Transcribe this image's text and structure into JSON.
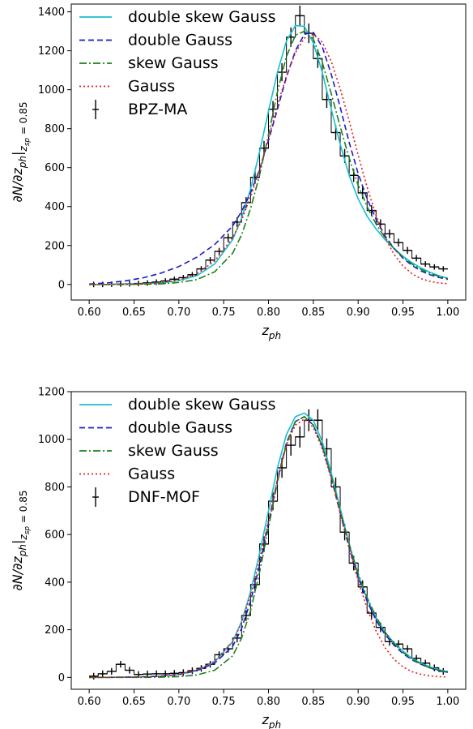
{
  "chart_data": [
    {
      "type": "line",
      "xlabel_main": "z",
      "xlabel_sub": "ph",
      "ylabel": "∂N/∂z_ph|_zsp=0.85",
      "ylabel_parts": {
        "main": "∂N/∂z",
        "sub1": "ph",
        "bar": "|",
        "sub2": "z",
        "sub3": "sp",
        "eq": " = 0.85"
      },
      "xlim": [
        0.58,
        1.02
      ],
      "ylim": [
        -80,
        1440
      ],
      "xticks": [
        "0.60",
        "0.65",
        "0.70",
        "0.75",
        "0.80",
        "0.85",
        "0.90",
        "0.95",
        "1.00"
      ],
      "yticks": [
        "0",
        "200",
        "400",
        "600",
        "800",
        "1000",
        "1200",
        "1400"
      ],
      "legend_position": "upper-left",
      "x": [
        0.6,
        0.62,
        0.64,
        0.66,
        0.68,
        0.7,
        0.72,
        0.74,
        0.76,
        0.77,
        0.78,
        0.79,
        0.8,
        0.81,
        0.82,
        0.83,
        0.84,
        0.85,
        0.86,
        0.87,
        0.88,
        0.89,
        0.9,
        0.91,
        0.92,
        0.93,
        0.94,
        0.95,
        0.96,
        0.97,
        0.98,
        0.99,
        1.0
      ],
      "series": [
        {
          "name": "double skew Gauss",
          "style": "solid",
          "color": "#17becf",
          "values": [
            0,
            0,
            1,
            3,
            8,
            20,
            45,
            105,
            230,
            340,
            490,
            680,
            890,
            1090,
            1250,
            1330,
            1325,
            1240,
            1090,
            900,
            720,
            560,
            440,
            350,
            285,
            230,
            185,
            145,
            112,
            85,
            63,
            45,
            32
          ]
        },
        {
          "name": "double Gauss",
          "style": "dashed",
          "color": "#1a1acc",
          "values": [
            2,
            8,
            18,
            34,
            58,
            92,
            140,
            205,
            300,
            375,
            470,
            590,
            740,
            900,
            1065,
            1200,
            1285,
            1295,
            1220,
            1080,
            910,
            730,
            570,
            440,
            335,
            250,
            185,
            135,
            98,
            70,
            50,
            36,
            26
          ]
        },
        {
          "name": "skew Gauss",
          "style": "dashdot",
          "color": "#1a801a",
          "values": [
            0,
            0,
            0,
            1,
            3,
            10,
            25,
            65,
            160,
            255,
            390,
            560,
            770,
            990,
            1170,
            1280,
            1300,
            1260,
            1140,
            980,
            810,
            650,
            510,
            400,
            310,
            240,
            185,
            140,
            105,
            78,
            57,
            42,
            30
          ]
        },
        {
          "name": "Gauss",
          "style": "dotted",
          "color": "#e31a1c",
          "values": [
            0,
            0,
            1,
            3,
            9,
            23,
            55,
            120,
            240,
            330,
            450,
            590,
            750,
            920,
            1070,
            1190,
            1265,
            1285,
            1245,
            1145,
            1005,
            840,
            665,
            500,
            355,
            240,
            155,
            95,
            55,
            30,
            16,
            8,
            4
          ]
        }
      ],
      "points": {
        "name": "BPZ-MA",
        "x": [
          0.605,
          0.615,
          0.625,
          0.635,
          0.645,
          0.655,
          0.665,
          0.675,
          0.685,
          0.695,
          0.705,
          0.715,
          0.725,
          0.735,
          0.745,
          0.755,
          0.765,
          0.775,
          0.785,
          0.795,
          0.805,
          0.815,
          0.825,
          0.835,
          0.845,
          0.855,
          0.865,
          0.875,
          0.885,
          0.895,
          0.905,
          0.915,
          0.925,
          0.935,
          0.945,
          0.955,
          0.965,
          0.975,
          0.985,
          0.995
        ],
        "y": [
          0,
          0,
          1,
          2,
          3,
          5,
          8,
          12,
          18,
          27,
          35,
          50,
          80,
          125,
          170,
          240,
          320,
          420,
          550,
          700,
          900,
          1090,
          1270,
          1380,
          1290,
          1160,
          950,
          780,
          660,
          560,
          470,
          380,
          310,
          260,
          215,
          175,
          135,
          105,
          90,
          80
        ]
      }
    },
    {
      "type": "line",
      "xlabel_main": "z",
      "xlabel_sub": "ph",
      "ylabel": "∂N/∂z_ph|_zsp=0.85",
      "ylabel_parts": {
        "main": "∂N/∂z",
        "sub1": "ph",
        "bar": "|",
        "sub2": "z",
        "sub3": "sp",
        "eq": " = 0.85"
      },
      "xlim": [
        0.58,
        1.02
      ],
      "ylim": [
        -50,
        1200
      ],
      "xticks": [
        "0.60",
        "0.65",
        "0.70",
        "0.75",
        "0.80",
        "0.85",
        "0.90",
        "0.95",
        "1.00"
      ],
      "yticks": [
        "0",
        "200",
        "400",
        "600",
        "800",
        "1000",
        "1200"
      ],
      "legend_position": "upper-left",
      "x": [
        0.6,
        0.62,
        0.64,
        0.66,
        0.68,
        0.7,
        0.72,
        0.74,
        0.76,
        0.77,
        0.78,
        0.79,
        0.8,
        0.81,
        0.82,
        0.83,
        0.84,
        0.85,
        0.86,
        0.87,
        0.88,
        0.89,
        0.9,
        0.91,
        0.92,
        0.93,
        0.94,
        0.95,
        0.96,
        0.97,
        0.98,
        0.99,
        1.0
      ],
      "series": [
        {
          "name": "double skew Gauss",
          "style": "solid",
          "color": "#17becf",
          "values": [
            0,
            0,
            1,
            2,
            5,
            12,
            28,
            65,
            150,
            235,
            360,
            520,
            700,
            880,
            1020,
            1095,
            1110,
            1080,
            990,
            860,
            710,
            560,
            430,
            330,
            250,
            190,
            145,
            110,
            80,
            60,
            44,
            32,
            24
          ]
        },
        {
          "name": "double Gauss",
          "style": "dashed",
          "color": "#1a1acc",
          "values": [
            0,
            0,
            1,
            2,
            5,
            12,
            28,
            60,
            130,
            205,
            320,
            470,
            650,
            830,
            985,
            1075,
            1095,
            1060,
            970,
            840,
            690,
            545,
            420,
            320,
            240,
            180,
            135,
            100,
            74,
            55,
            40,
            29,
            21
          ]
        },
        {
          "name": "skew Gauss",
          "style": "dashdot",
          "color": "#1a801a",
          "values": [
            0,
            0,
            0,
            0,
            1,
            3,
            10,
            30,
            90,
            165,
            280,
            440,
            630,
            820,
            980,
            1075,
            1095,
            1060,
            970,
            845,
            700,
            560,
            435,
            335,
            255,
            190,
            142,
            105,
            77,
            56,
            40,
            29,
            21
          ]
        },
        {
          "name": "Gauss",
          "style": "dotted",
          "color": "#e31a1c",
          "values": [
            0,
            0,
            1,
            2,
            5,
            12,
            30,
            68,
            150,
            230,
            345,
            490,
            660,
            830,
            975,
            1060,
            1085,
            1050,
            960,
            835,
            690,
            540,
            405,
            290,
            195,
            125,
            76,
            44,
            24,
            13,
            6,
            3,
            1
          ]
        }
      ],
      "points": {
        "name": "DNF-MOF",
        "x": [
          0.605,
          0.615,
          0.625,
          0.635,
          0.645,
          0.655,
          0.665,
          0.675,
          0.685,
          0.695,
          0.705,
          0.715,
          0.725,
          0.735,
          0.745,
          0.755,
          0.765,
          0.775,
          0.785,
          0.795,
          0.805,
          0.815,
          0.825,
          0.835,
          0.845,
          0.855,
          0.865,
          0.875,
          0.885,
          0.895,
          0.905,
          0.915,
          0.925,
          0.935,
          0.945,
          0.955,
          0.965,
          0.975,
          0.985,
          0.995
        ],
        "y": [
          5,
          15,
          25,
          55,
          30,
          12,
          14,
          15,
          15,
          17,
          20,
          28,
          38,
          55,
          95,
          120,
          165,
          260,
          390,
          560,
          740,
          880,
          975,
          1010,
          1080,
          1080,
          960,
          800,
          610,
          480,
          380,
          270,
          210,
          150,
          140,
          120,
          80,
          60,
          40,
          25
        ]
      }
    }
  ]
}
